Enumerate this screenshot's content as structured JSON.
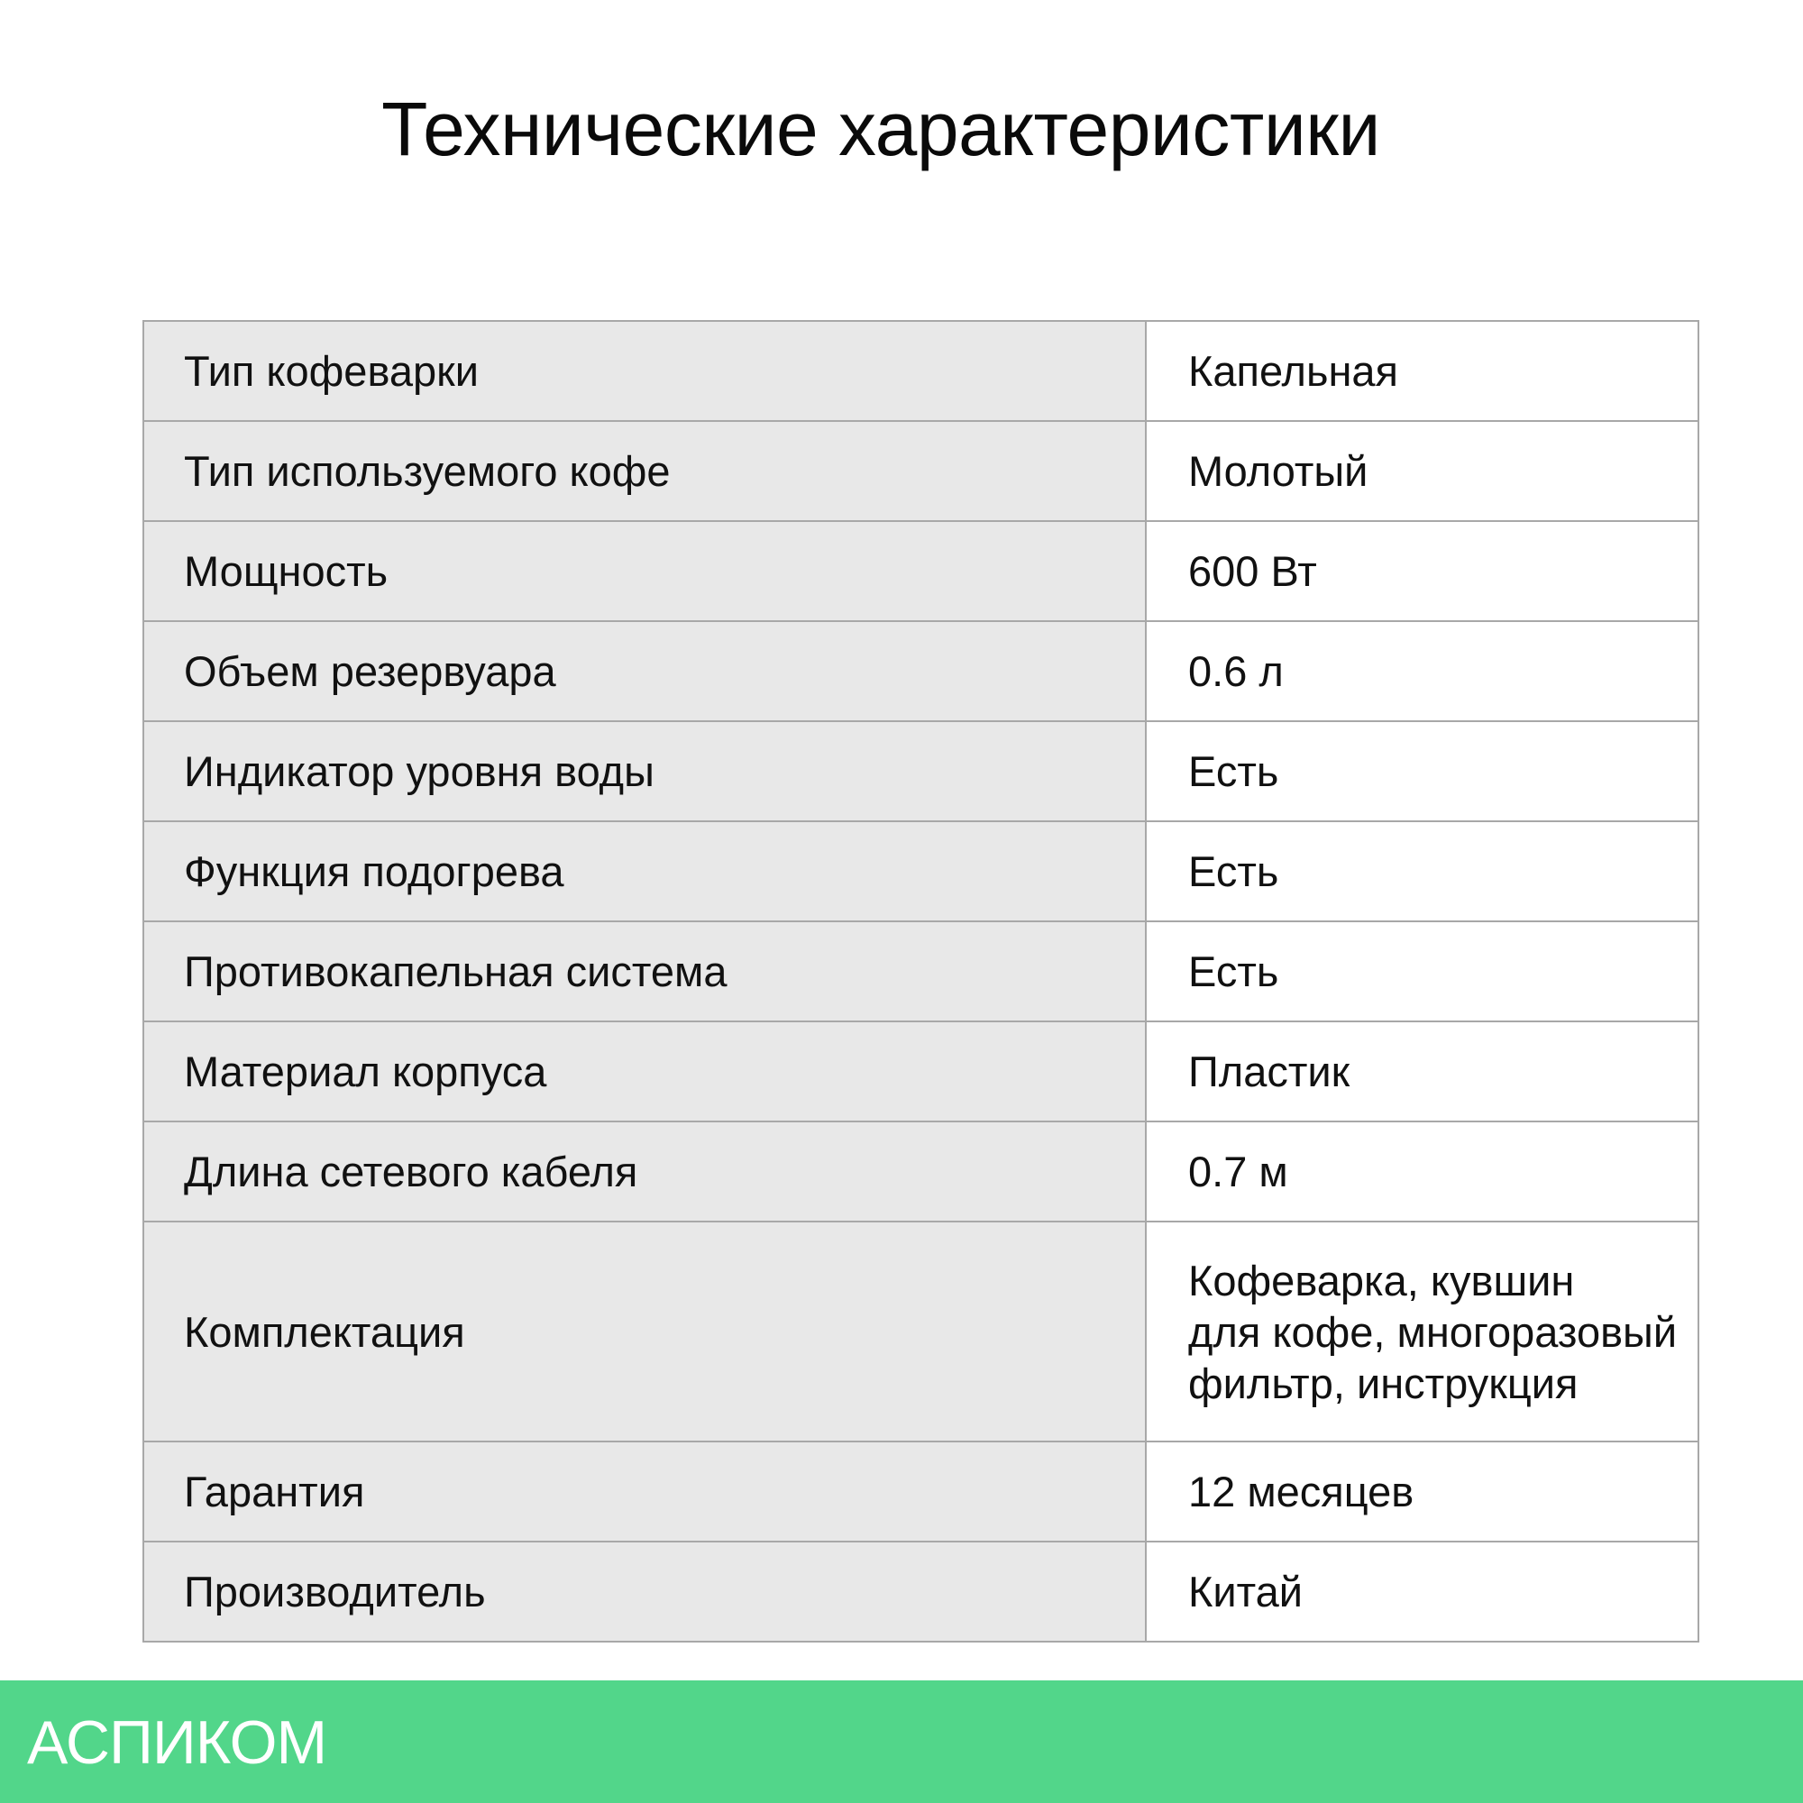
{
  "title": "Технические характеристики",
  "specs": [
    {
      "label": "Тип кофеварки",
      "value": "Капельная"
    },
    {
      "label": "Тип используемого кофе",
      "value": "Молотый"
    },
    {
      "label": "Мощность",
      "value": "600 Вт"
    },
    {
      "label": "Объем резервуара",
      "value": "0.6 л"
    },
    {
      "label": "Индикатор уровня воды",
      "value": "Есть"
    },
    {
      "label": "Функция подогрева",
      "value": "Есть"
    },
    {
      "label": "Противокапельная система",
      "value": "Есть"
    },
    {
      "label": "Материал корпуса",
      "value": "Пластик"
    },
    {
      "label": "Длина сетевого кабеля",
      "value": "0.7 м"
    },
    {
      "label": "Комплектация",
      "value_lines": [
        "Кофеварка, кувшин",
        "для кофе, многоразовый",
        "фильтр, инструкция"
      ]
    },
    {
      "label": "Гарантия",
      "value": "12 месяцев"
    },
    {
      "label": "Производитель",
      "value": "Китай"
    }
  ],
  "footer": {
    "brand": "АСПИКОМ",
    "color": "#52d68a"
  }
}
